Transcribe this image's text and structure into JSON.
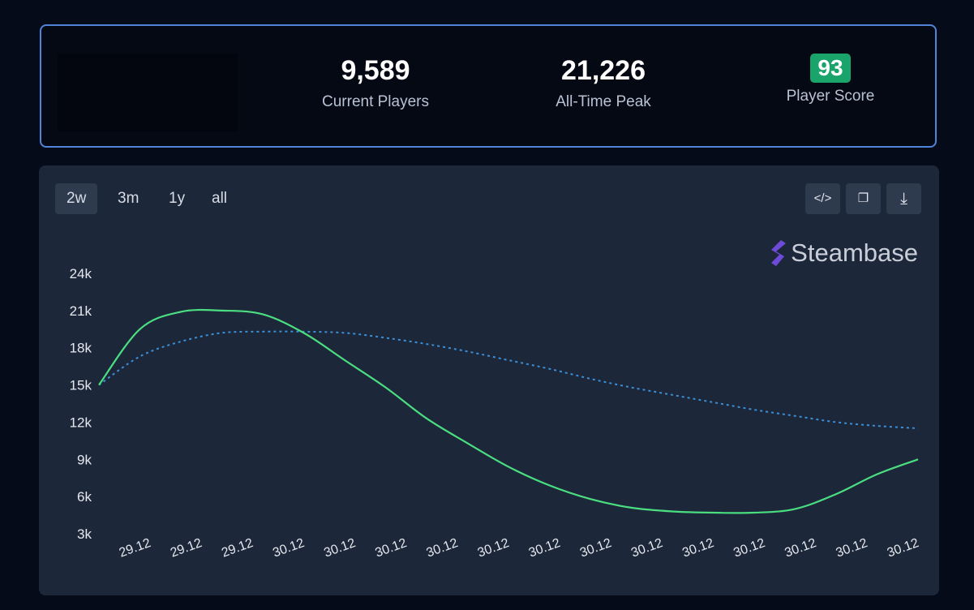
{
  "stats": {
    "current": {
      "value": "9,589",
      "label": "Current Players"
    },
    "peak": {
      "value": "21,226",
      "label": "All-Time Peak"
    },
    "score": {
      "value": "93",
      "label": "Player Score"
    }
  },
  "timeframes": [
    "2w",
    "3m",
    "1y",
    "all"
  ],
  "active_timeframe": "2w",
  "toolbar": {
    "embed_icon": "code-icon",
    "copy_icon": "copy-icon",
    "download_icon": "download-icon",
    "embed_glyph": "</>",
    "copy_glyph": "❐",
    "download_glyph": "⤓"
  },
  "brand": "Steambase",
  "colors": {
    "players": "#4ade80",
    "average": "#3b8fd6",
    "brand_mark": "#6d4bd8"
  },
  "chart_data": {
    "type": "line",
    "ylim": [
      3000,
      24000
    ],
    "yticks": [
      "3k",
      "6k",
      "9k",
      "12k",
      "15k",
      "18k",
      "21k",
      "24k"
    ],
    "ytick_values": [
      3000,
      6000,
      9000,
      12000,
      15000,
      18000,
      21000,
      24000
    ],
    "xticks": [
      "29.12",
      "29.12",
      "29.12",
      "30.12",
      "30.12",
      "30.12",
      "30.12",
      "30.12",
      "30.12",
      "30.12",
      "30.12",
      "30.12",
      "30.12",
      "30.12",
      "30.12",
      "30.12"
    ],
    "grid": false,
    "series": [
      {
        "style": "solid",
        "values": [
          15000,
          19500,
          20900,
          21000,
          20700,
          19200,
          17000,
          14800,
          12300,
          10300,
          8400,
          6900,
          5800,
          5100,
          4800,
          4700,
          4700,
          5000,
          6200,
          7800,
          9000
        ]
      },
      {
        "style": "dotted",
        "values": [
          15000,
          17300,
          18500,
          19200,
          19300,
          19300,
          19200,
          18800,
          18300,
          17700,
          17000,
          16300,
          15500,
          14800,
          14200,
          13600,
          13000,
          12500,
          12000,
          11700,
          11500
        ]
      }
    ]
  }
}
